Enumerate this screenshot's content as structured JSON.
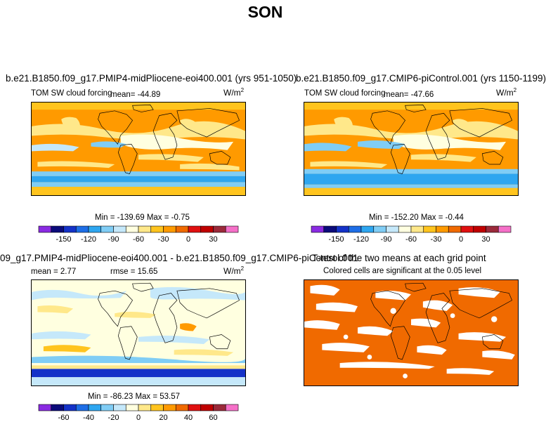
{
  "title": "SON",
  "panels": [
    {
      "id": "a",
      "title": "b.e21.B1850.f09_g17.PMIP4-midPliocene-eoi400.001 (yrs 951-1050)",
      "variable": "TOM SW cloud forcing",
      "mean_label": "mean= -44.89",
      "units": "W/m",
      "units_sup": "2",
      "minmax": "Min = -139.69 Max = -0.75"
    },
    {
      "id": "b",
      "title": "b.e21.B1850.f09_g17.CMIP6-piControl.001 (yrs 1150-1199)",
      "variable": "TOM SW cloud forcing",
      "mean_label": "mean= -47.66",
      "units": "W/m",
      "units_sup": "2",
      "minmax": "Min = -152.20 Max = -0.44"
    },
    {
      "id": "c",
      "title": "09_g17.PMIP4-midPliocene-eoi400.001 - b.e21.B1850.f09_g17.CMIP6-piControl.001",
      "mean_label": "mean =   2.77",
      "rmse_label": "rmse =  15.65",
      "units": "W/m",
      "units_sup": "2",
      "minmax": "Min = -86.23 Max =  53.57"
    },
    {
      "id": "d",
      "title": "T-test of the two means at each grid point",
      "subtitle": "Colored cells are significant at the 0.05 level"
    }
  ],
  "chart_data": [
    {
      "type": "heatmap",
      "name": "mean field colorbar (panels a and b)",
      "levels": [
        -165,
        -150,
        -135,
        -120,
        -105,
        -90,
        -75,
        -60,
        -45,
        -30,
        -15,
        0,
        15,
        30,
        45
      ],
      "tick_labels": [
        "-150",
        "-120",
        "-90",
        "-60",
        "-30",
        "0",
        "30"
      ],
      "colors": [
        "#8A2BE2",
        "#0B0B7A",
        "#1432C8",
        "#1E6EE6",
        "#2EA6F0",
        "#80CDF5",
        "#C5E8FA",
        "#FFFFE0",
        "#FFE88A",
        "#FFC41E",
        "#FF9A00",
        "#F06A00",
        "#E01010",
        "#C00000",
        "#9B2A3A",
        "#F570C8"
      ]
    },
    {
      "type": "heatmap",
      "name": "difference colorbar (panel c)",
      "levels": [
        -70,
        -60,
        -50,
        -40,
        -30,
        -20,
        -10,
        0,
        10,
        20,
        30,
        40,
        50,
        60,
        70
      ],
      "tick_labels": [
        "-60",
        "-40",
        "-20",
        "0",
        "20",
        "40",
        "60"
      ],
      "colors": [
        "#8A2BE2",
        "#0B0B7A",
        "#1432C8",
        "#1E6EE6",
        "#2EA6F0",
        "#80CDF5",
        "#C5E8FA",
        "#FFFFE0",
        "#FFE88A",
        "#FFC41E",
        "#FF9A00",
        "#F06A00",
        "#E01010",
        "#C00000",
        "#9B2A3A",
        "#F570C8"
      ]
    }
  ]
}
